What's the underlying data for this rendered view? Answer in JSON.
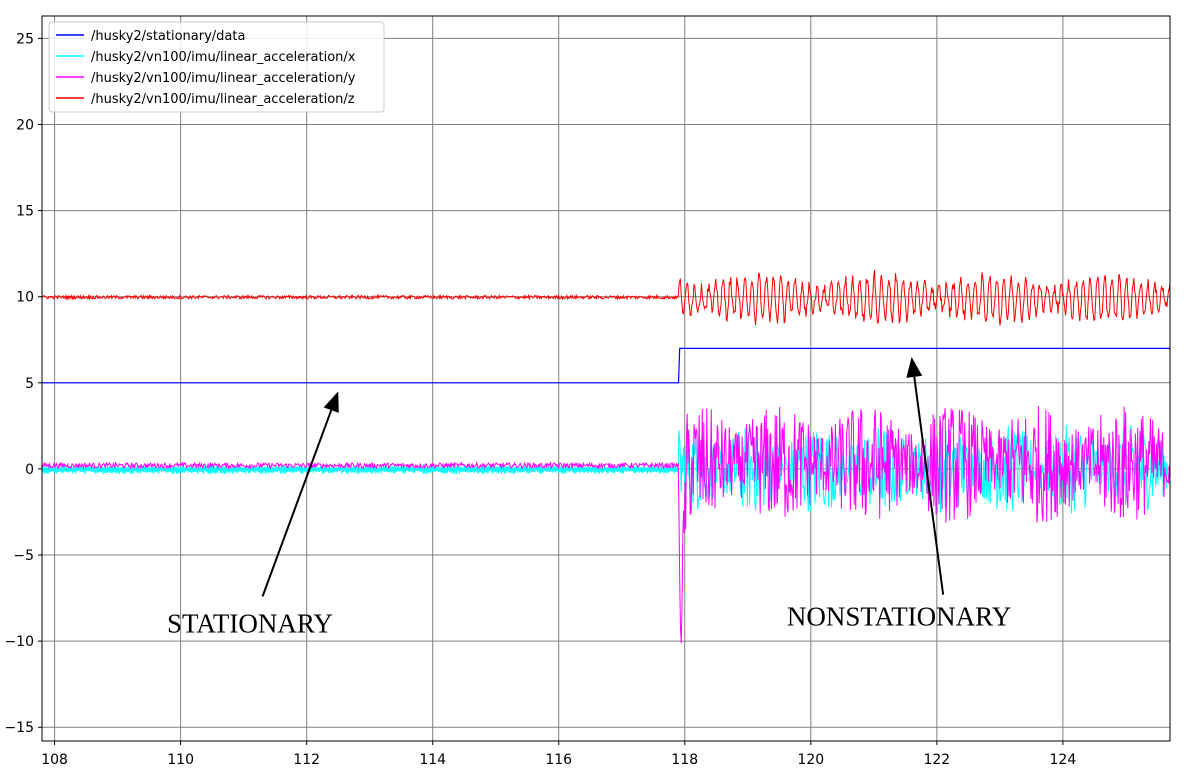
{
  "chart_data": {
    "type": "line",
    "title": "",
    "xlabel": "",
    "ylabel": "",
    "xlim": [
      107.8,
      125.7
    ],
    "ylim": [
      -15.8,
      26.3
    ],
    "xticks": [
      108,
      110,
      112,
      114,
      116,
      118,
      120,
      122,
      124
    ],
    "yticks": [
      -15,
      -10,
      -5,
      0,
      5,
      10,
      15,
      20,
      25
    ],
    "xtick_labels": [
      "108",
      "110",
      "112",
      "114",
      "116",
      "118",
      "120",
      "122",
      "124"
    ],
    "ytick_labels": [
      "−15",
      "−10",
      "−5",
      "0",
      "5",
      "10",
      "15",
      "20",
      "25"
    ],
    "grid": true,
    "legend_position": "upper-left",
    "transition_x": 117.9,
    "series": [
      {
        "name": "/husky2/stationary/data",
        "color": "#0000ff",
        "stationary_level": 5,
        "nonstationary_level": 7
      },
      {
        "name": "/husky2/vn100/imu/linear_acceleration/x",
        "color": "#00ffff",
        "stationary_level": 0,
        "stationary_noise": 0.3,
        "nonstationary_level": 0,
        "nonstationary_noise": 2.6
      },
      {
        "name": "/husky2/vn100/imu/linear_acceleration/y",
        "color": "#ff00ff",
        "stationary_level": 0.2,
        "stationary_noise": 0.15,
        "nonstationary_level": 0.3,
        "nonstationary_noise": 3.5,
        "dip_x": 117.95,
        "dip_min": -8
      },
      {
        "name": "/husky2/vn100/imu/linear_acceleration/z",
        "color": "#ff0000",
        "stationary_level": 9.97,
        "stationary_noise": 0.1,
        "nonstationary_level": 9.9,
        "nonstationary_noise": 1.3
      }
    ],
    "annotations": [
      {
        "text": "STATIONARY",
        "x": 111.1,
        "y": -9.5,
        "arrow_from": [
          111.3,
          -7.4
        ],
        "arrow_to": [
          112.5,
          4.5
        ]
      },
      {
        "text": "NONSTATIONARY",
        "x": 121.4,
        "y": -9.1,
        "arrow_from": [
          122.1,
          -7.3
        ],
        "arrow_to": [
          121.6,
          6.5
        ]
      }
    ]
  }
}
